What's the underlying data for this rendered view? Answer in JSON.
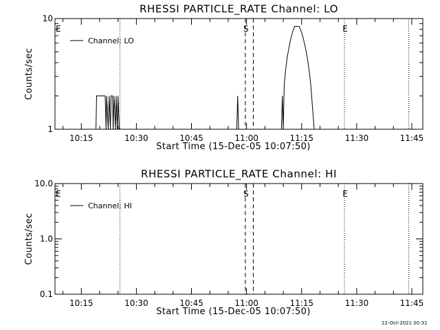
{
  "chart_data": [
    {
      "type": "line",
      "title": "RHESSI PARTICLE_RATE Channel: LO",
      "xlabel": "Start Time (15-Dec-05 10:07:50)",
      "ylabel": "Counts/sec",
      "yscale": "log",
      "xlim": [
        "10:07:50",
        "11:48:00"
      ],
      "ylim": [
        1,
        10
      ],
      "xticks": [
        "10:15",
        "10:30",
        "10:45",
        "11:00",
        "11:15",
        "11:30",
        "11:45"
      ],
      "yticks": [
        "1",
        "10"
      ],
      "legend": {
        "position": "top-left",
        "entries": [
          "Channel: LO"
        ]
      },
      "markers": [
        {
          "label": "E",
          "time": "10:07:50",
          "style": "none"
        },
        {
          "label": "",
          "time": "10:25:30",
          "style": "dotted"
        },
        {
          "label": "S",
          "time": "10:59:40",
          "style": "dashed"
        },
        {
          "label": "",
          "time": "11:01:50",
          "style": "dashed"
        },
        {
          "label": "E",
          "time": "11:26:40",
          "style": "dotted"
        },
        {
          "label": "",
          "time": "11:44:10",
          "style": "dotted"
        }
      ],
      "series": [
        {
          "name": "Channel: LO",
          "points": [
            [
              "10:07:50",
              1
            ],
            [
              "10:19:00",
              1
            ],
            [
              "10:19:10",
              2
            ],
            [
              "10:21:30",
              2
            ],
            [
              "10:21:45",
              1
            ],
            [
              "10:21:55",
              2
            ],
            [
              "10:22:20",
              1
            ],
            [
              "10:22:35",
              2
            ],
            [
              "10:22:55",
              1
            ],
            [
              "10:23:05",
              2
            ],
            [
              "10:23:30",
              2
            ],
            [
              "10:23:40",
              1
            ],
            [
              "10:23:55",
              2
            ],
            [
              "10:24:20",
              1
            ],
            [
              "10:24:30",
              2
            ],
            [
              "10:24:50",
              1
            ],
            [
              "10:25:00",
              2
            ],
            [
              "10:25:20",
              1
            ],
            [
              "10:57:20",
              1
            ],
            [
              "10:57:35",
              2
            ],
            [
              "10:57:50",
              1
            ],
            [
              "11:09:30",
              1
            ],
            [
              "11:09:45",
              2
            ],
            [
              "11:10:00",
              1
            ],
            [
              "11:10:15",
              2.5
            ],
            [
              "11:10:40",
              3.5
            ],
            [
              "11:11:05",
              4.5
            ],
            [
              "11:11:35",
              5.5
            ],
            [
              "11:12:00",
              6.5
            ],
            [
              "11:12:30",
              7.5
            ],
            [
              "11:13:05",
              8.5
            ],
            [
              "11:14:20",
              8.5
            ],
            [
              "11:15:00",
              7.5
            ],
            [
              "11:15:30",
              6.5
            ],
            [
              "11:16:00",
              5.5
            ],
            [
              "11:16:30",
              4.5
            ],
            [
              "11:17:00",
              3.5
            ],
            [
              "11:17:30",
              2.5
            ],
            [
              "11:18:00",
              1.5
            ],
            [
              "11:18:25",
              1
            ],
            [
              "11:48:00",
              1
            ]
          ]
        }
      ]
    },
    {
      "type": "line",
      "title": "RHESSI PARTICLE_RATE Channel: HI",
      "xlabel": "Start Time (15-Dec-05 10:07:50)",
      "ylabel": "Counts/sec",
      "yscale": "log",
      "xlim": [
        "10:07:50",
        "11:48:00"
      ],
      "ylim": [
        0.1,
        10
      ],
      "xticks": [
        "10:15",
        "10:30",
        "10:45",
        "11:00",
        "11:15",
        "11:30",
        "11:45"
      ],
      "yticks": [
        "0.1",
        "1.0",
        "10.0"
      ],
      "legend": {
        "position": "top-left",
        "entries": [
          "Channel: HI"
        ]
      },
      "markers": [
        {
          "label": "E",
          "time": "10:07:50",
          "style": "none"
        },
        {
          "label": "",
          "time": "10:25:30",
          "style": "dotted"
        },
        {
          "label": "S",
          "time": "10:59:40",
          "style": "dashed"
        },
        {
          "label": "",
          "time": "11:01:50",
          "style": "dashed"
        },
        {
          "label": "E",
          "time": "11:26:40",
          "style": "dotted"
        },
        {
          "label": "",
          "time": "11:44:10",
          "style": "dotted"
        }
      ],
      "series": [
        {
          "name": "Channel: HI",
          "points": []
        }
      ]
    }
  ],
  "footer": {
    "timestamp": "22-Oct-2021 00:31"
  }
}
